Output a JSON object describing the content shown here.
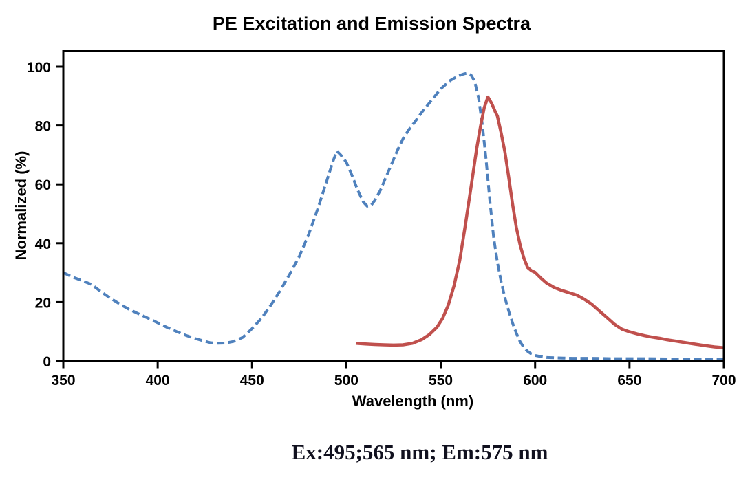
{
  "title": "PE Excitation and Emission Spectra",
  "caption": "Ex:495;565 nm; Em:575 nm",
  "chart_data": {
    "type": "line",
    "title": "PE Excitation and Emission Spectra",
    "xlabel": "Wavelength (nm)",
    "ylabel": "Normalized (%)",
    "xlim": [
      350,
      700
    ],
    "ylim": [
      0,
      105.4
    ],
    "x_ticks": [
      350,
      400,
      450,
      500,
      550,
      600,
      650,
      700
    ],
    "y_ticks": [
      0,
      20,
      40,
      60,
      80,
      100
    ],
    "grid": false,
    "legend": "none",
    "annotations": {
      "excitation_peaks_nm": [
        495,
        565
      ],
      "emission_peak_nm": 575
    },
    "series": [
      {
        "name": "Excitation",
        "style": "dashed",
        "color": "#4f81bd",
        "width": 4,
        "points": [
          [
            350,
            30
          ],
          [
            355,
            28.5
          ],
          [
            360,
            27.3
          ],
          [
            365,
            26
          ],
          [
            370,
            23.5
          ],
          [
            375,
            21.3
          ],
          [
            380,
            19.3
          ],
          [
            385,
            17.5
          ],
          [
            390,
            16
          ],
          [
            395,
            14.5
          ],
          [
            400,
            13
          ],
          [
            405,
            11.4
          ],
          [
            410,
            10
          ],
          [
            415,
            8.7
          ],
          [
            420,
            7.6
          ],
          [
            425,
            6.7
          ],
          [
            428,
            6.2
          ],
          [
            432,
            6
          ],
          [
            436,
            6.1
          ],
          [
            440,
            6.6
          ],
          [
            445,
            8
          ],
          [
            450,
            11
          ],
          [
            455,
            14.5
          ],
          [
            460,
            19
          ],
          [
            465,
            24
          ],
          [
            470,
            29.5
          ],
          [
            475,
            35.5
          ],
          [
            480,
            43
          ],
          [
            485,
            52
          ],
          [
            490,
            62
          ],
          [
            493,
            68
          ],
          [
            495,
            71.3
          ],
          [
            497,
            70
          ],
          [
            500,
            67.5
          ],
          [
            503,
            63
          ],
          [
            506,
            58
          ],
          [
            509,
            54
          ],
          [
            511,
            52.6
          ],
          [
            513,
            52.8
          ],
          [
            515,
            54.5
          ],
          [
            518,
            58
          ],
          [
            521,
            62.5
          ],
          [
            524,
            67
          ],
          [
            527,
            71.5
          ],
          [
            530,
            75.5
          ],
          [
            533,
            78.5
          ],
          [
            536,
            81
          ],
          [
            540,
            84.5
          ],
          [
            545,
            88.5
          ],
          [
            550,
            92.5
          ],
          [
            555,
            95.3
          ],
          [
            559,
            96.8
          ],
          [
            562,
            97.5
          ],
          [
            564,
            97.8
          ],
          [
            566,
            97.2
          ],
          [
            568,
            95
          ],
          [
            570,
            89.5
          ],
          [
            572,
            80.5
          ],
          [
            574,
            68.5
          ],
          [
            576,
            54.5
          ],
          [
            578,
            42
          ],
          [
            580,
            33.5
          ],
          [
            582,
            27
          ],
          [
            584,
            21.5
          ],
          [
            586,
            17
          ],
          [
            588,
            13
          ],
          [
            590,
            9.5
          ],
          [
            592,
            6.6
          ],
          [
            594,
            4.6
          ],
          [
            596,
            3.3
          ],
          [
            598,
            2.4
          ],
          [
            600,
            1.9
          ],
          [
            603,
            1.5
          ],
          [
            606,
            1.2
          ],
          [
            610,
            1.1
          ],
          [
            615,
            1
          ],
          [
            620,
            0.9
          ],
          [
            630,
            0.9
          ],
          [
            640,
            0.8
          ],
          [
            650,
            0.8
          ],
          [
            660,
            0.8
          ],
          [
            670,
            0.7
          ],
          [
            680,
            0.7
          ],
          [
            690,
            0.7
          ],
          [
            700,
            0.7
          ]
        ]
      },
      {
        "name": "Emission",
        "style": "solid",
        "color": "#c0504d",
        "width": 4.5,
        "points": [
          [
            505,
            6
          ],
          [
            510,
            5.8
          ],
          [
            515,
            5.6
          ],
          [
            520,
            5.5
          ],
          [
            525,
            5.4
          ],
          [
            530,
            5.5
          ],
          [
            535,
            6
          ],
          [
            540,
            7.3
          ],
          [
            544,
            9
          ],
          [
            548,
            11.5
          ],
          [
            551,
            14.5
          ],
          [
            554,
            19
          ],
          [
            557,
            25.5
          ],
          [
            560,
            34
          ],
          [
            563,
            46
          ],
          [
            566,
            59
          ],
          [
            569,
            72
          ],
          [
            571,
            79.5
          ],
          [
            573,
            86
          ],
          [
            575,
            89.7
          ],
          [
            577,
            87.5
          ],
          [
            579,
            84.5
          ],
          [
            580,
            83.2
          ],
          [
            582,
            77.5
          ],
          [
            584,
            71
          ],
          [
            586,
            62.5
          ],
          [
            588,
            53.5
          ],
          [
            590,
            45.5
          ],
          [
            592,
            39.5
          ],
          [
            594,
            35
          ],
          [
            596,
            31.8
          ],
          [
            598,
            30.7
          ],
          [
            600,
            30.1
          ],
          [
            603,
            28.2
          ],
          [
            606,
            26.5
          ],
          [
            610,
            25
          ],
          [
            614,
            24
          ],
          [
            618,
            23.2
          ],
          [
            622,
            22.4
          ],
          [
            626,
            21
          ],
          [
            630,
            19.3
          ],
          [
            634,
            17
          ],
          [
            638,
            14.8
          ],
          [
            642,
            12.5
          ],
          [
            646,
            10.8
          ],
          [
            650,
            9.9
          ],
          [
            654,
            9.2
          ],
          [
            658,
            8.6
          ],
          [
            662,
            8.1
          ],
          [
            666,
            7.7
          ],
          [
            670,
            7.2
          ],
          [
            675,
            6.7
          ],
          [
            680,
            6.2
          ],
          [
            685,
            5.7
          ],
          [
            690,
            5.2
          ],
          [
            695,
            4.8
          ],
          [
            700,
            4.5
          ]
        ]
      }
    ]
  }
}
